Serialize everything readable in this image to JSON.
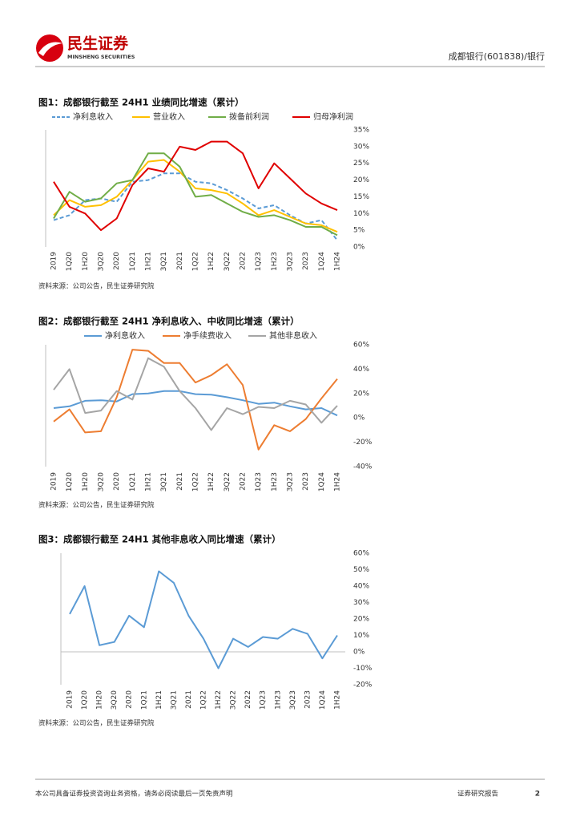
{
  "header": {
    "logo_text": "民生证券",
    "logo_subtext": "MINSHENG SECURITIES",
    "report_subject": "成都银行(601838)/银行"
  },
  "chart_data": [
    {
      "type": "line",
      "title": "图1：成都银行截至 24H1 业绩同比增速（累计）",
      "categories": [
        "2019",
        "1Q20",
        "1H20",
        "3Q20",
        "2020",
        "1Q21",
        "1H21",
        "3Q21",
        "2021",
        "1Q22",
        "1H22",
        "3Q22",
        "2022",
        "1Q23",
        "1H23",
        "3Q23",
        "2023",
        "1Q24",
        "1H24"
      ],
      "series": [
        {
          "name": "净利息收入",
          "color": "#5b9bd5",
          "style": "dashed",
          "values": [
            8,
            9.5,
            14,
            14.5,
            13.5,
            19.5,
            20,
            22,
            22,
            19.5,
            19,
            17,
            14.5,
            11.5,
            12.5,
            9.5,
            7,
            8,
            2
          ]
        },
        {
          "name": "营业收入",
          "color": "#ffc000",
          "style": "solid",
          "values": [
            9.5,
            14,
            12,
            12.5,
            15,
            20,
            25.5,
            26,
            22.5,
            17.5,
            17,
            16,
            13,
            9.5,
            11,
            9,
            7,
            6.5,
            4.5
          ]
        },
        {
          "name": "拨备前利润",
          "color": "#70ad47",
          "style": "solid",
          "values": [
            8.5,
            16.5,
            13.5,
            14.5,
            19,
            20,
            28,
            28,
            24,
            15,
            15.5,
            13,
            10.5,
            9,
            9.5,
            8,
            6,
            6,
            3.5
          ]
        },
        {
          "name": "归母净利润",
          "color": "#e00000",
          "style": "solid",
          "values": [
            19.5,
            12,
            10,
            5,
            8.5,
            18.5,
            23.5,
            22.5,
            30,
            29,
            31.5,
            31.5,
            28,
            17.5,
            25,
            20.5,
            16,
            13,
            11
          ]
        }
      ],
      "ylim": [
        0,
        35
      ],
      "yticks": [
        {
          "value": 0,
          "label": "0%"
        },
        {
          "value": 5,
          "label": "5%"
        },
        {
          "value": 10,
          "label": "10%"
        },
        {
          "value": 15,
          "label": "15%"
        },
        {
          "value": 20,
          "label": "20%"
        },
        {
          "value": 25,
          "label": "25%"
        },
        {
          "value": 30,
          "label": "30%"
        },
        {
          "value": 35,
          "label": "35%"
        }
      ],
      "source": "资料来源：公司公告，民生证券研究院"
    },
    {
      "type": "line",
      "title": "图2：成都银行截至 24H1 净利息收入、中收同比增速（累计）",
      "categories": [
        "2019",
        "1Q20",
        "1H20",
        "3Q20",
        "2020",
        "1Q21",
        "1H21",
        "3Q21",
        "2021",
        "1Q22",
        "1H22",
        "3Q22",
        "2022",
        "1Q23",
        "1H23",
        "3Q23",
        "2023",
        "1Q24",
        "1H24"
      ],
      "series": [
        {
          "name": "净利息收入",
          "color": "#5b9bd5",
          "style": "solid",
          "values": [
            8,
            9.5,
            14,
            14.5,
            13.5,
            19.5,
            20,
            22,
            22,
            19.5,
            19,
            17,
            14.5,
            11.5,
            12.5,
            9.5,
            7,
            8,
            2
          ]
        },
        {
          "name": "净手续费收入",
          "color": "#ed7d31",
          "style": "solid",
          "values": [
            -3,
            7,
            -12,
            -11,
            17,
            56,
            55,
            45,
            45,
            29,
            35,
            44,
            27,
            -26,
            -6,
            -11,
            -1,
            16,
            32
          ]
        },
        {
          "name": "其他非息收入",
          "color": "#a5a5a5",
          "style": "solid",
          "values": [
            23,
            40,
            4,
            6,
            22,
            15,
            49,
            42,
            22,
            8,
            -10,
            8,
            3,
            9,
            8,
            14,
            11,
            -4,
            10
          ]
        }
      ],
      "ylim": [
        -40,
        60
      ],
      "yticks": [
        {
          "value": -40,
          "label": "-40%"
        },
        {
          "value": -20,
          "label": "-20%"
        },
        {
          "value": 0,
          "label": "0%"
        },
        {
          "value": 20,
          "label": "20%"
        },
        {
          "value": 40,
          "label": "40%"
        },
        {
          "value": 60,
          "label": "60%"
        }
      ],
      "source": "资料来源：公司公告，民生证券研究院"
    },
    {
      "type": "line",
      "title": "图3：成都银行截至 24H1 其他非息收入同比增速（累计）",
      "categories": [
        "2019",
        "1Q20",
        "1H20",
        "3Q20",
        "2020",
        "1Q21",
        "1H21",
        "3Q21",
        "2021",
        "1Q22",
        "1H22",
        "3Q22",
        "2022",
        "1Q23",
        "1H23",
        "3Q23",
        "2023",
        "1Q24",
        "1H24"
      ],
      "values": [
        23,
        40,
        4,
        6,
        22,
        15,
        49,
        42,
        22,
        8,
        -10,
        8,
        3,
        9,
        8,
        14,
        11,
        -4,
        10
      ],
      "color": "#5b9bd5",
      "ylim": [
        -20,
        60
      ],
      "yticks": [
        {
          "value": -20,
          "label": "-20%"
        },
        {
          "value": -10,
          "label": "-10%"
        },
        {
          "value": 0,
          "label": "0%"
        },
        {
          "value": 10,
          "label": "10%"
        },
        {
          "value": 20,
          "label": "20%"
        },
        {
          "value": 30,
          "label": "30%"
        },
        {
          "value": 40,
          "label": "40%"
        },
        {
          "value": 50,
          "label": "50%"
        },
        {
          "value": 60,
          "label": "60%"
        }
      ],
      "source": "资料来源：公司公告，民生证券研究院"
    }
  ],
  "footer": {
    "disclaimer": "本公司具备证券投资咨询业务资格，请务必阅读最后一页免责声明",
    "report_type": "证券研究报告",
    "page_number": "2"
  }
}
